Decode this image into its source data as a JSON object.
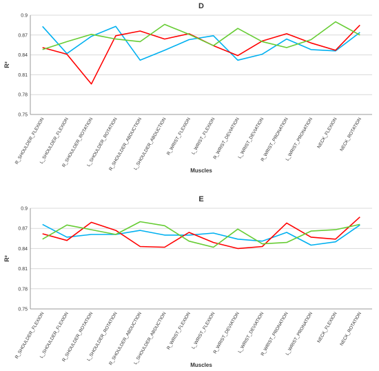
{
  "chart_data": [
    {
      "type": "line",
      "title": "D",
      "xlabel": "Muscles",
      "ylabel": "R²",
      "ylim": [
        0.75,
        0.9
      ],
      "yticks": [
        "0.75",
        "0.78",
        "0.81",
        "0.84",
        "0.87",
        "0.9"
      ],
      "grid": true,
      "categories": [
        "R_SHOULDER_FLEXION",
        "L_SHOULDER_FLEXION",
        "R_SHOULDER_ROTATION",
        "L_SHOULDER_ROTATION",
        "R_SHOULDER_ABDUCTION",
        "L_SHOULDER_ABDUCTION",
        "R_WRIST_FLEXION",
        "L_WRIST_FLEXION",
        "R_WRIST_DEVIATION",
        "L_WRIST_DEVIATION",
        "R_WRIST_PRONATION",
        "L_WRIST_PRONATION",
        "NECK_FLEXION",
        "NECK_ROTATION"
      ],
      "series": [
        {
          "color": "#00b0f0",
          "values": [
            0.883,
            0.842,
            0.868,
            0.883,
            0.832,
            0.847,
            0.863,
            0.869,
            0.832,
            0.841,
            0.864,
            0.848,
            0.846,
            0.874
          ]
        },
        {
          "color": "#ff0000",
          "values": [
            0.851,
            0.841,
            0.796,
            0.869,
            0.876,
            0.864,
            0.872,
            0.854,
            0.839,
            0.861,
            0.872,
            0.858,
            0.847,
            0.885
          ]
        },
        {
          "color": "#66cc33",
          "values": [
            0.848,
            0.86,
            0.871,
            0.864,
            0.86,
            0.886,
            0.871,
            0.854,
            0.88,
            0.86,
            0.851,
            0.863,
            0.89,
            0.87
          ]
        }
      ]
    },
    {
      "type": "line",
      "title": "E",
      "xlabel": "Muscles",
      "ylabel": "R²",
      "ylim": [
        0.75,
        0.9
      ],
      "yticks": [
        "0.75",
        "0.78",
        "0.81",
        "0.84",
        "0.87",
        "0.9"
      ],
      "grid": true,
      "categories": [
        "R_SHOULDER_FLEXION",
        "L_SHOULDER_FLEXION",
        "R_SHOULDER_ROTATION",
        "L_SHOULDER_ROTATION",
        "R_SHOULDER_ABDUCTION",
        "L_SHOULDER_ABDUCTION",
        "R_WRIST_FLEXION",
        "L_WRIST_FLEXION",
        "R_WRIST_DEVIATION",
        "L_WRIST_DEVIATION",
        "R_WRIST_PRONATION",
        "L_WRIST_PRONATION",
        "NECK_FLEXION",
        "NECK_ROTATION"
      ],
      "series": [
        {
          "color": "#00b0f0",
          "values": [
            0.876,
            0.857,
            0.861,
            0.861,
            0.867,
            0.86,
            0.86,
            0.863,
            0.854,
            0.851,
            0.864,
            0.845,
            0.85,
            0.875
          ]
        },
        {
          "color": "#ff0000",
          "values": [
            0.862,
            0.852,
            0.879,
            0.867,
            0.843,
            0.842,
            0.864,
            0.849,
            0.84,
            0.843,
            0.878,
            0.857,
            0.854,
            0.887
          ]
        },
        {
          "color": "#66cc33",
          "values": [
            0.854,
            0.875,
            0.868,
            0.861,
            0.88,
            0.874,
            0.851,
            0.842,
            0.869,
            0.847,
            0.849,
            0.866,
            0.868,
            0.876
          ]
        }
      ]
    }
  ]
}
